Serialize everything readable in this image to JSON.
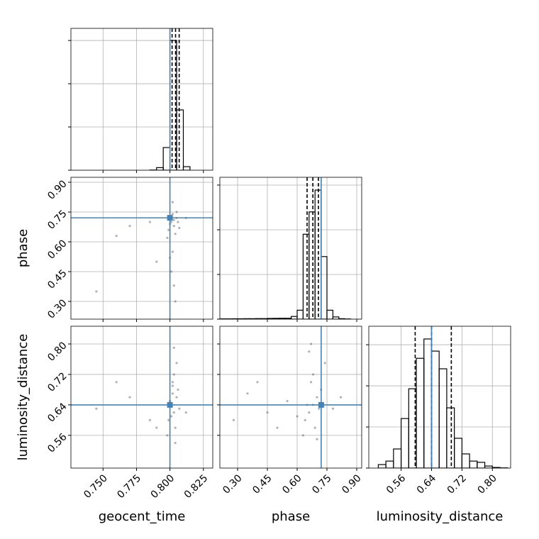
{
  "chart_data": [
    {
      "type": "histogram",
      "bins": [
        0.785,
        0.79,
        0.795,
        0.8,
        0.805,
        0.81,
        0.815
      ],
      "values": [
        2,
        30,
        262,
        1500,
        697,
        41
      ],
      "xlim": [
        0.726,
        0.832
      ],
      "xticks": [
        0.75,
        0.775,
        0.8,
        0.825
      ],
      "ylim": [
        0,
        1640
      ],
      "yticks": [
        0,
        500,
        1000,
        1500
      ],
      "quantiles": [
        0.8016,
        0.8042,
        0.8069
      ],
      "truth": 0.8,
      "color": "#000000",
      "truth_color": "#4682b4",
      "grid": true
    },
    {
      "type": "scatter",
      "x": [
        0.801,
        0.803,
        0.805,
        0.799,
        0.806,
        0.802,
        0.804,
        0.8,
        0.807,
        0.803,
        0.798,
        0.805,
        0.802,
        0.801,
        0.803,
        0.804,
        0.8,
        0.802,
        0.785,
        0.77,
        0.76,
        0.745,
        0.812,
        0.79
      ],
      "y": [
        0.7,
        0.68,
        0.72,
        0.66,
        0.7,
        0.74,
        0.64,
        0.69,
        0.67,
        0.71,
        0.62,
        0.75,
        0.55,
        0.45,
        0.38,
        0.3,
        0.52,
        0.8,
        0.7,
        0.68,
        0.63,
        0.35,
        0.72,
        0.5
      ],
      "xlim": [
        0.726,
        0.832
      ],
      "xticks": [
        0.75,
        0.775,
        0.8,
        0.825
      ],
      "ylim": [
        0.2107,
        0.925
      ],
      "yticks": [
        {
          "value": 0.9,
          "label": "0.90"
        },
        {
          "value": 0.75,
          "label": "0.75"
        },
        {
          "value": 0.6,
          "label": "0.60"
        },
        {
          "value": 0.45,
          "label": "0.45"
        },
        {
          "value": 0.3,
          "label": "0.30"
        }
      ],
      "ylabel": "phase",
      "truths": [
        0.8,
        0.721
      ],
      "color": "#555555",
      "truth_color": "#4682b4",
      "grid": true
    },
    {
      "type": "histogram",
      "bins": [
        0.21,
        0.24,
        0.27,
        0.3,
        0.33,
        0.36,
        0.39,
        0.42,
        0.45,
        0.48,
        0.51,
        0.54,
        0.57,
        0.6,
        0.63,
        0.66,
        0.69,
        0.72,
        0.75,
        0.78,
        0.81,
        0.84,
        0.87,
        0.9
      ],
      "values": [
        3,
        3,
        4,
        4,
        5,
        5,
        6,
        6,
        8,
        9,
        10,
        10,
        30,
        100,
        950,
        1200,
        1444,
        700,
        100,
        25,
        5,
        2,
        0
      ],
      "xlim": [
        0.2107,
        0.925
      ],
      "xticks": [
        0.3,
        0.45,
        0.6,
        0.75,
        0.9
      ],
      "ylim": [
        0,
        1587
      ],
      "yticks": [
        0,
        500,
        1000,
        1500
      ],
      "quantiles": [
        0.65,
        0.679,
        0.707
      ],
      "truth": 0.721,
      "color": "#000000",
      "truth_color": "#4682b4",
      "grid": true
    },
    {
      "type": "scatter",
      "x": [
        0.801,
        0.803,
        0.805,
        0.799,
        0.806,
        0.802,
        0.804,
        0.8,
        0.807,
        0.803,
        0.798,
        0.805,
        0.802,
        0.801,
        0.803,
        0.804,
        0.8,
        0.802,
        0.785,
        0.77,
        0.76,
        0.745,
        0.812,
        0.79
      ],
      "y": [
        0.64,
        0.62,
        0.66,
        0.6,
        0.68,
        0.7,
        0.58,
        0.64,
        0.63,
        0.72,
        0.56,
        0.75,
        0.67,
        0.61,
        0.79,
        0.54,
        0.65,
        0.69,
        0.6,
        0.66,
        0.7,
        0.63,
        0.62,
        0.58
      ],
      "xlim": [
        0.726,
        0.832
      ],
      "xticks": [
        {
          "value": 0.75,
          "label": "0.750"
        },
        {
          "value": 0.775,
          "label": "0.775"
        },
        {
          "value": 0.8,
          "label": "0.800"
        },
        0.825
      ],
      "ylim": [
        0.474,
        0.8466
      ],
      "yticks": [
        {
          "value": 0.8,
          "label": "0.80"
        },
        0.72,
        0.64,
        0.56
      ],
      "xlabel": "geocent_time",
      "ylabel": "luminosity_distance",
      "truths": [
        0.8,
        0.64
      ],
      "color": "#555555",
      "truth_color": "#4682b4",
      "grid": true
    },
    {
      "type": "scatter",
      "x": [
        0.68,
        0.66,
        0.7,
        0.64,
        0.72,
        0.67,
        0.69,
        0.65,
        0.71,
        0.68,
        0.63,
        0.74,
        0.66,
        0.7,
        0.55,
        0.45,
        0.35,
        0.28,
        0.4,
        0.5,
        0.78,
        0.82,
        0.6,
        0.67
      ],
      "y": [
        0.64,
        0.62,
        0.66,
        0.6,
        0.68,
        0.7,
        0.58,
        0.64,
        0.63,
        0.72,
        0.56,
        0.75,
        0.78,
        0.55,
        0.65,
        0.62,
        0.67,
        0.6,
        0.7,
        0.58,
        0.63,
        0.66,
        0.61,
        0.8
      ],
      "xlim": [
        0.2107,
        0.925
      ],
      "xticks": [
        {
          "value": 0.3,
          "label": "0.30"
        },
        0.45,
        {
          "value": 0.6,
          "label": "0.60"
        },
        0.75,
        {
          "value": 0.9,
          "label": "0.90"
        }
      ],
      "ylim": [
        0.474,
        0.8466
      ],
      "yticks": [
        0.56,
        0.64,
        0.72,
        0.8
      ],
      "xlabel": "phase",
      "truths": [
        0.721,
        0.64
      ],
      "color": "#555555",
      "truth_color": "#4682b4",
      "grid": true
    },
    {
      "type": "histogram",
      "bins": [
        0.5,
        0.52,
        0.54,
        0.56,
        0.58,
        0.6,
        0.62,
        0.64,
        0.66,
        0.68,
        0.7,
        0.72,
        0.74,
        0.76,
        0.78,
        0.8,
        0.82,
        0.84
      ],
      "values": [
        17,
        34,
        93,
        241,
        386,
        534,
        628,
        569,
        483,
        293,
        145,
        69,
        34,
        28,
        10,
        3,
        1
      ],
      "xlim": [
        0.475,
        0.848
      ],
      "xticks": [
        0.56,
        0.64,
        0.72,
        {
          "value": 0.8,
          "label": "0.80"
        }
      ],
      "ylim": [
        0,
        690
      ],
      "yticks": [
        0,
        200,
        400,
        600
      ],
      "xlabel": "luminosity_distance",
      "quantiles": [
        0.597,
        0.64,
        0.692
      ],
      "truth": 0.64,
      "color": "#000000",
      "truth_color": "#4682b4",
      "grid": true
    }
  ]
}
